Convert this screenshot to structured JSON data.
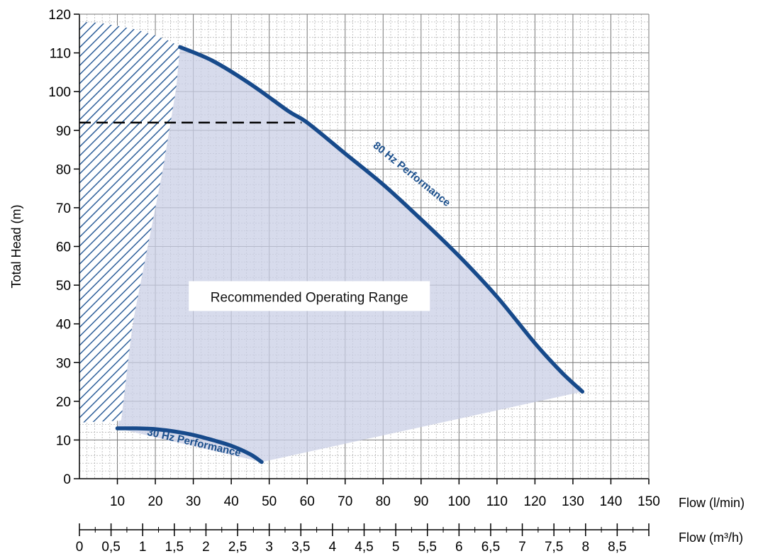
{
  "chart_data": {
    "type": "line",
    "title": "",
    "ylabel": "Total Head (m)",
    "xlabel": "Flow (l/min)",
    "x2label": "Flow (m³/h)",
    "xlim": [
      0,
      150
    ],
    "ylim": [
      0,
      120
    ],
    "grid": true,
    "y_ticks": [
      "0",
      "10",
      "20",
      "30",
      "40",
      "50",
      "60",
      "70",
      "80",
      "90",
      "100",
      "110",
      "120"
    ],
    "x_ticks": [
      "10",
      "20",
      "30",
      "40",
      "50",
      "60",
      "70",
      "80",
      "90",
      "100",
      "110",
      "120",
      "130",
      "140",
      "150"
    ],
    "x2_ticks": [
      "0",
      "0,5",
      "1",
      "1,5",
      "2",
      "2,5",
      "3",
      "3,5",
      "4",
      "4,5",
      "5",
      "5,5",
      "6",
      "6,5",
      "7",
      "7,5",
      "8",
      "8,5"
    ],
    "x2_values": [
      0,
      0.5,
      1,
      1.5,
      2,
      2.5,
      3,
      3.5,
      4,
      4.5,
      5,
      5.5,
      6,
      6.5,
      7,
      7.5,
      8,
      8.5
    ],
    "x2_max": 9,
    "series": [
      {
        "name": "80 Hz Performance",
        "x": [
          26.5,
          35,
          45,
          55,
          60,
          70,
          80,
          90,
          100,
          110,
          120,
          127,
          132.5
        ],
        "y": [
          111.5,
          108,
          102,
          95,
          92,
          84,
          76,
          67,
          57.5,
          47,
          35,
          27.5,
          22.5
        ]
      },
      {
        "name": "30 Hz Performance",
        "x": [
          10,
          15,
          20,
          25,
          30,
          35,
          40,
          45,
          48
        ],
        "y": [
          13,
          13,
          12.8,
          12.2,
          11.3,
          10,
          8.5,
          6.3,
          4.3
        ]
      }
    ],
    "regions": [
      {
        "name": "Recommended Operating Range",
        "x": [
          26.5,
          35,
          45,
          55,
          60,
          70,
          80,
          90,
          100,
          110,
          120,
          127,
          132.5,
          48,
          10,
          25
        ],
        "y": [
          111.5,
          108,
          102,
          95,
          92,
          84,
          76,
          67,
          57.5,
          47,
          35,
          27.5,
          22.5,
          4.3,
          13,
          111.5
        ]
      },
      {
        "name": "",
        "x": [
          0,
          5,
          10,
          15,
          20,
          24,
          26.5,
          25.5,
          22,
          18,
          14,
          11,
          0
        ],
        "y": [
          118,
          117.8,
          117,
          116,
          114.5,
          113,
          111.5,
          101,
          80,
          60,
          40,
          15,
          14.5
        ]
      }
    ],
    "annotations": [
      {
        "text": "Recommended Operating Range",
        "x": 60,
        "y": 47
      },
      {
        "text": "80 Hz Performance",
        "x": 87,
        "y": 78
      },
      {
        "text": "30 Hz Performance",
        "x": 30,
        "y": 8.5
      }
    ],
    "reference_lines": [
      {
        "x": [
          0,
          58.5
        ],
        "y": [
          92,
          92
        ],
        "style": "dashed"
      }
    ]
  }
}
